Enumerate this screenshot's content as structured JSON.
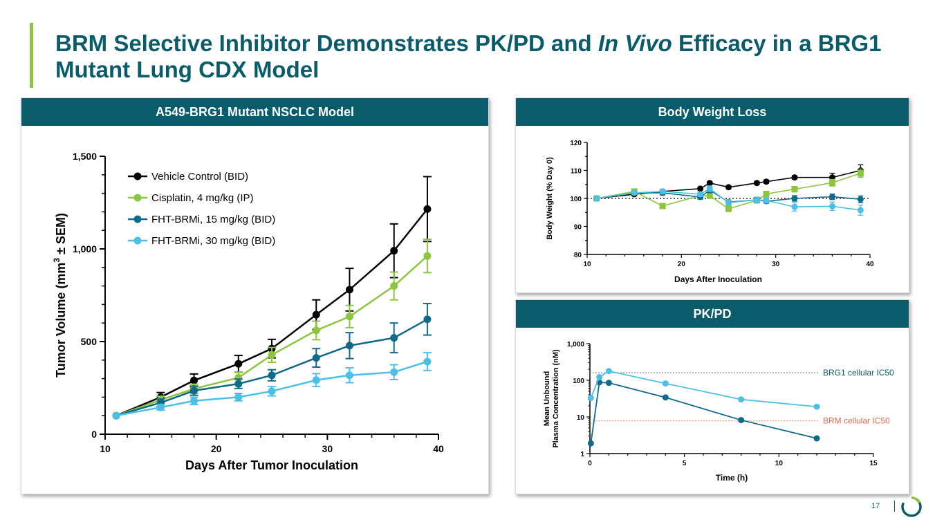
{
  "title": {
    "part1": "BRM Selective Inhibitor Demonstrates PK/PD and ",
    "italic": "In Vivo",
    "part2": " Efficacy in a BRG1 Mutant Lung CDX Model"
  },
  "page_number": "17",
  "colors": {
    "teal": "#0a5c6b",
    "green": "#8cc63f",
    "accent": "#8cc63f",
    "vehicle": "#000000",
    "cisplatin": "#8cc63f",
    "brm15": "#116a8a",
    "brm30": "#4dbfe5",
    "brg1_line": "#8a88b8",
    "brm_line": "#f2a094",
    "brm_label": "#e2674a"
  },
  "chart_data": [
    {
      "id": "tumor",
      "type": "line",
      "title": "A549-BRG1 Mutant NSCLC Model",
      "xlabel": "Days After Tumor Inoculation",
      "ylabel_pre": "Tumor Volume (mm",
      "ylabel_sup": "3",
      "ylabel_post": " ± SEM)",
      "xlim": [
        10,
        40
      ],
      "ylim": [
        0,
        1500
      ],
      "xticks": [
        10,
        20,
        30,
        40
      ],
      "xtick_labels": [
        "10",
        "20",
        "30",
        "40"
      ],
      "yticks": [
        0,
        500,
        1000,
        1500
      ],
      "ytick_labels": [
        "0",
        "500",
        "1,000",
        "1,500"
      ],
      "series": [
        {
          "name": "Vehicle Control (BID)",
          "color": "#000000",
          "x": [
            11,
            15,
            18,
            22,
            25,
            29,
            32,
            36,
            39
          ],
          "y": [
            100,
            200,
            290,
            380,
            462,
            645,
            780,
            990,
            1215
          ],
          "err": [
            0,
            25,
            35,
            45,
            50,
            80,
            115,
            145,
            175
          ]
        },
        {
          "name": "Cisplatin, 4 mg/kg (IP)",
          "color": "#8cc63f",
          "x": [
            11,
            15,
            18,
            22,
            25,
            29,
            32,
            36,
            39
          ],
          "y": [
            100,
            185,
            245,
            305,
            428,
            560,
            635,
            800,
            962
          ],
          "err": [
            0,
            20,
            25,
            30,
            40,
            50,
            60,
            75,
            90
          ]
        },
        {
          "name": "FHT-BRMi, 15 mg/kg (BID)",
          "color": "#116a8a",
          "x": [
            11,
            15,
            18,
            22,
            25,
            29,
            32,
            36,
            39
          ],
          "y": [
            100,
            170,
            235,
            272,
            318,
            412,
            478,
            520,
            620
          ],
          "err": [
            0,
            20,
            25,
            25,
            30,
            50,
            70,
            80,
            85
          ]
        },
        {
          "name": "FHT-BRMi, 30 mg/kg (BID)",
          "color": "#4dbfe5",
          "x": [
            11,
            15,
            18,
            22,
            25,
            29,
            32,
            36,
            39
          ],
          "y": [
            100,
            145,
            180,
            200,
            232,
            292,
            318,
            335,
            392
          ],
          "err": [
            0,
            15,
            20,
            20,
            25,
            35,
            40,
            40,
            48
          ]
        }
      ]
    },
    {
      "id": "bw",
      "type": "line",
      "title": "Body Weight Loss",
      "xlabel": "Days After  Inoculation",
      "ylabel": "Body Weight  (% Day 0)",
      "xlim": [
        10,
        40
      ],
      "ylim": [
        80,
        120
      ],
      "xticks": [
        10,
        20,
        30,
        40
      ],
      "xtick_labels": [
        "10",
        "20",
        "30",
        "40"
      ],
      "yticks": [
        80,
        90,
        100,
        110,
        120
      ],
      "ytick_labels": [
        "80",
        "90",
        "100",
        "110",
        "120"
      ],
      "reference_y": 100,
      "series": [
        {
          "name": "Vehicle Control (BID)",
          "color": "#000000",
          "marker": "circle",
          "x": [
            11,
            15,
            18,
            22,
            23,
            25,
            28,
            29,
            32,
            36,
            39
          ],
          "y": [
            100,
            101.5,
            102.5,
            103.5,
            105.5,
            104,
            105.5,
            106,
            107.5,
            107.5,
            110
          ],
          "err": [
            0,
            0.5,
            0.8,
            0.5,
            0.5,
            0.6,
            0.6,
            0.6,
            0.6,
            1.5,
            2
          ]
        },
        {
          "name": "Cisplatin, 4 mg/kg (IP)",
          "color": "#8cc63f",
          "marker": "square",
          "x": [
            11,
            15,
            18,
            22,
            23,
            25,
            28,
            29,
            32,
            36,
            39
          ],
          "y": [
            100,
            102.5,
            97.3,
            101,
            101,
            96.3,
            99.3,
            101.6,
            103.3,
            105.6,
            109
          ],
          "err": [
            0,
            0.5,
            0.8,
            0.8,
            0.8,
            1,
            1,
            1,
            1,
            1.2,
            1.5
          ]
        },
        {
          "name": "FHT-BRMi, 15 mg/kg (BID)",
          "color": "#116a8a",
          "marker": "circle",
          "x": [
            11,
            15,
            18,
            22,
            23,
            25,
            28,
            29,
            32,
            36,
            39
          ],
          "y": [
            100,
            102,
            102,
            100.5,
            103,
            98.7,
            99.5,
            99,
            100,
            100.6,
            99.7
          ],
          "err": [
            0,
            0.5,
            0.8,
            0.8,
            1,
            0.8,
            0.8,
            0.8,
            1,
            1,
            1.2
          ]
        },
        {
          "name": "FHT-BRMi, 30 mg/kg (BID)",
          "color": "#4dbfe5",
          "marker": "circle",
          "x": [
            11,
            15,
            18,
            22,
            23,
            25,
            28,
            29,
            32,
            36,
            39
          ],
          "y": [
            100,
            102,
            102.5,
            101.5,
            103.5,
            98.5,
            99.5,
            99.3,
            97,
            97.2,
            95.8
          ],
          "err": [
            0,
            0.5,
            0.8,
            0.8,
            1,
            1,
            1,
            1,
            1.5,
            1.5,
            1.8
          ]
        }
      ]
    },
    {
      "id": "pk",
      "type": "line",
      "title": "PK/PD",
      "xlabel": "Time (h)",
      "ylabel_line1": "Mean Unbound",
      "ylabel_line2": "Plasma Concentration (nM)",
      "xlim": [
        0,
        15
      ],
      "ylim": [
        1,
        1000
      ],
      "yscale": "log",
      "xticks": [
        0,
        5,
        10,
        15
      ],
      "xtick_labels": [
        "0",
        "5",
        "10",
        "15"
      ],
      "yticks": [
        1,
        10,
        100,
        1000
      ],
      "ytick_labels": [
        "1",
        "10",
        "100",
        "1,000"
      ],
      "series": [
        {
          "name": "FHT-BRMi, 15 mg/kg (BID)",
          "color": "#116a8a",
          "x": [
            0.05,
            0.5,
            1,
            4,
            8,
            12
          ],
          "y": [
            1.9,
            88,
            85,
            34,
            8.2,
            2.6
          ]
        },
        {
          "name": "FHT-BRMi, 30 mg/kg (BID)",
          "color": "#4dbfe5",
          "x": [
            0.05,
            0.5,
            1,
            4,
            8,
            12
          ],
          "y": [
            33,
            122,
            178,
            82,
            30,
            19
          ]
        }
      ],
      "reference_lines": [
        {
          "label": "BRG1 cellular IC50",
          "y": 160,
          "color": "#8a88b8",
          "label_color": "#0a5c6b"
        },
        {
          "label": "BRM cellular IC50",
          "y": 7.8,
          "color": "#f2a094",
          "label_color": "#e2674a"
        }
      ]
    }
  ]
}
